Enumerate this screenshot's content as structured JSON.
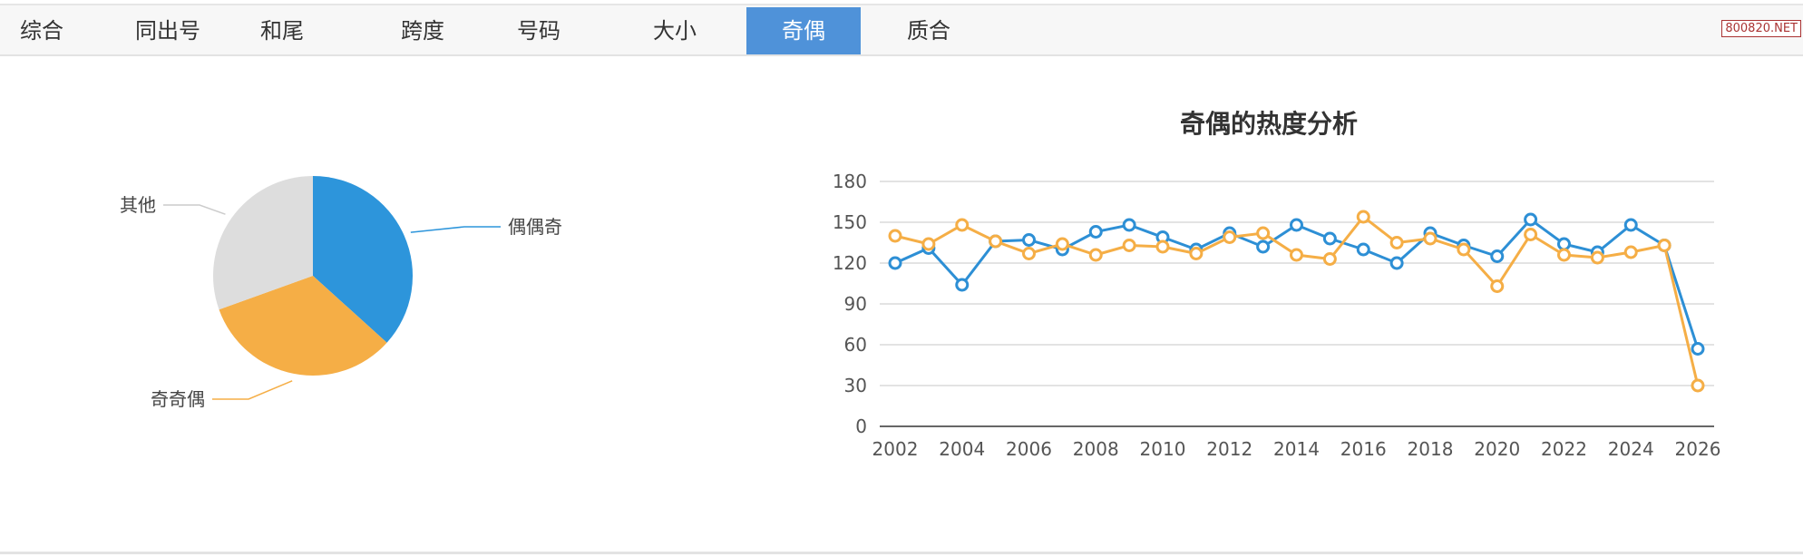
{
  "tabs": [
    "综合",
    "同出号",
    "和尾",
    "跨度",
    "号码",
    "大小",
    "奇偶",
    "质合"
  ],
  "active_tab": 6,
  "watermark": "800820.NET",
  "pie": {
    "type": "pie",
    "slices": [
      {
        "label": "偶偶奇",
        "value": 36.7,
        "color": "#2d95db"
      },
      {
        "label": "奇奇偶",
        "value": 32.8,
        "color": "#f5ae46"
      },
      {
        "label": "其他",
        "value": 30.5,
        "color": "#dddddd"
      }
    ]
  },
  "chart_data": {
    "type": "line",
    "title": "奇偶的热度分析",
    "x": [
      2002,
      2003,
      2004,
      2005,
      2006,
      2007,
      2008,
      2009,
      2010,
      2011,
      2012,
      2013,
      2014,
      2015,
      2016,
      2017,
      2018,
      2019,
      2020,
      2021,
      2022,
      2023,
      2024,
      2025,
      2026
    ],
    "x_ticks": [
      "2002",
      "2004",
      "2006",
      "2008",
      "2010",
      "2012",
      "2014",
      "2016",
      "2018",
      "2020",
      "2022",
      "2024",
      "2026"
    ],
    "y_ticks": [
      "0",
      "30",
      "60",
      "90",
      "120",
      "150",
      "180"
    ],
    "ylim": [
      0,
      180
    ],
    "grid": true,
    "series": [
      {
        "color": "#2d8fd5",
        "values": [
          120,
          131,
          104,
          136,
          137,
          130,
          143,
          148,
          139,
          130,
          142,
          132,
          148,
          138,
          130,
          120,
          142,
          133,
          125,
          152,
          134,
          128,
          148,
          133,
          57
        ]
      },
      {
        "color": "#f5ae46",
        "values": [
          140,
          134,
          148,
          136,
          127,
          134,
          126,
          133,
          132,
          127,
          139,
          142,
          126,
          123,
          154,
          135,
          138,
          130,
          103,
          141,
          126,
          124,
          128,
          133,
          30
        ]
      }
    ]
  }
}
